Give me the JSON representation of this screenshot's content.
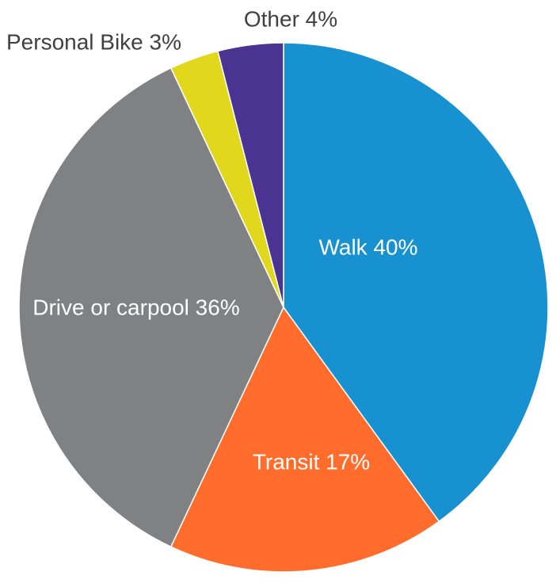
{
  "chart_data": {
    "type": "pie",
    "title": "",
    "slices": [
      {
        "label": "Walk",
        "value": 40,
        "display": "Walk 40%",
        "color": "#1791d0",
        "label_color": "#ffffff",
        "label_pos": "inside"
      },
      {
        "label": "Transit",
        "value": 17,
        "display": "Transit 17%",
        "color": "#ff6c2c",
        "label_color": "#ffffff",
        "label_pos": "inside"
      },
      {
        "label": "Drive or carpool",
        "value": 36,
        "display": "Drive or carpool 36%",
        "color": "#808183",
        "label_color": "#ffffff",
        "label_pos": "inside"
      },
      {
        "label": "Personal Bike",
        "value": 3,
        "display": "Personal Bike 3%",
        "color": "#e1d81e",
        "label_color": "#404040",
        "label_pos": "outside"
      },
      {
        "label": "Other",
        "value": 4,
        "display": "Other 4%",
        "color": "#4a3391",
        "label_color": "#404040",
        "label_pos": "outside"
      }
    ],
    "start_angle": "12 o'clock",
    "direction": "clockwise",
    "legend": "none"
  }
}
